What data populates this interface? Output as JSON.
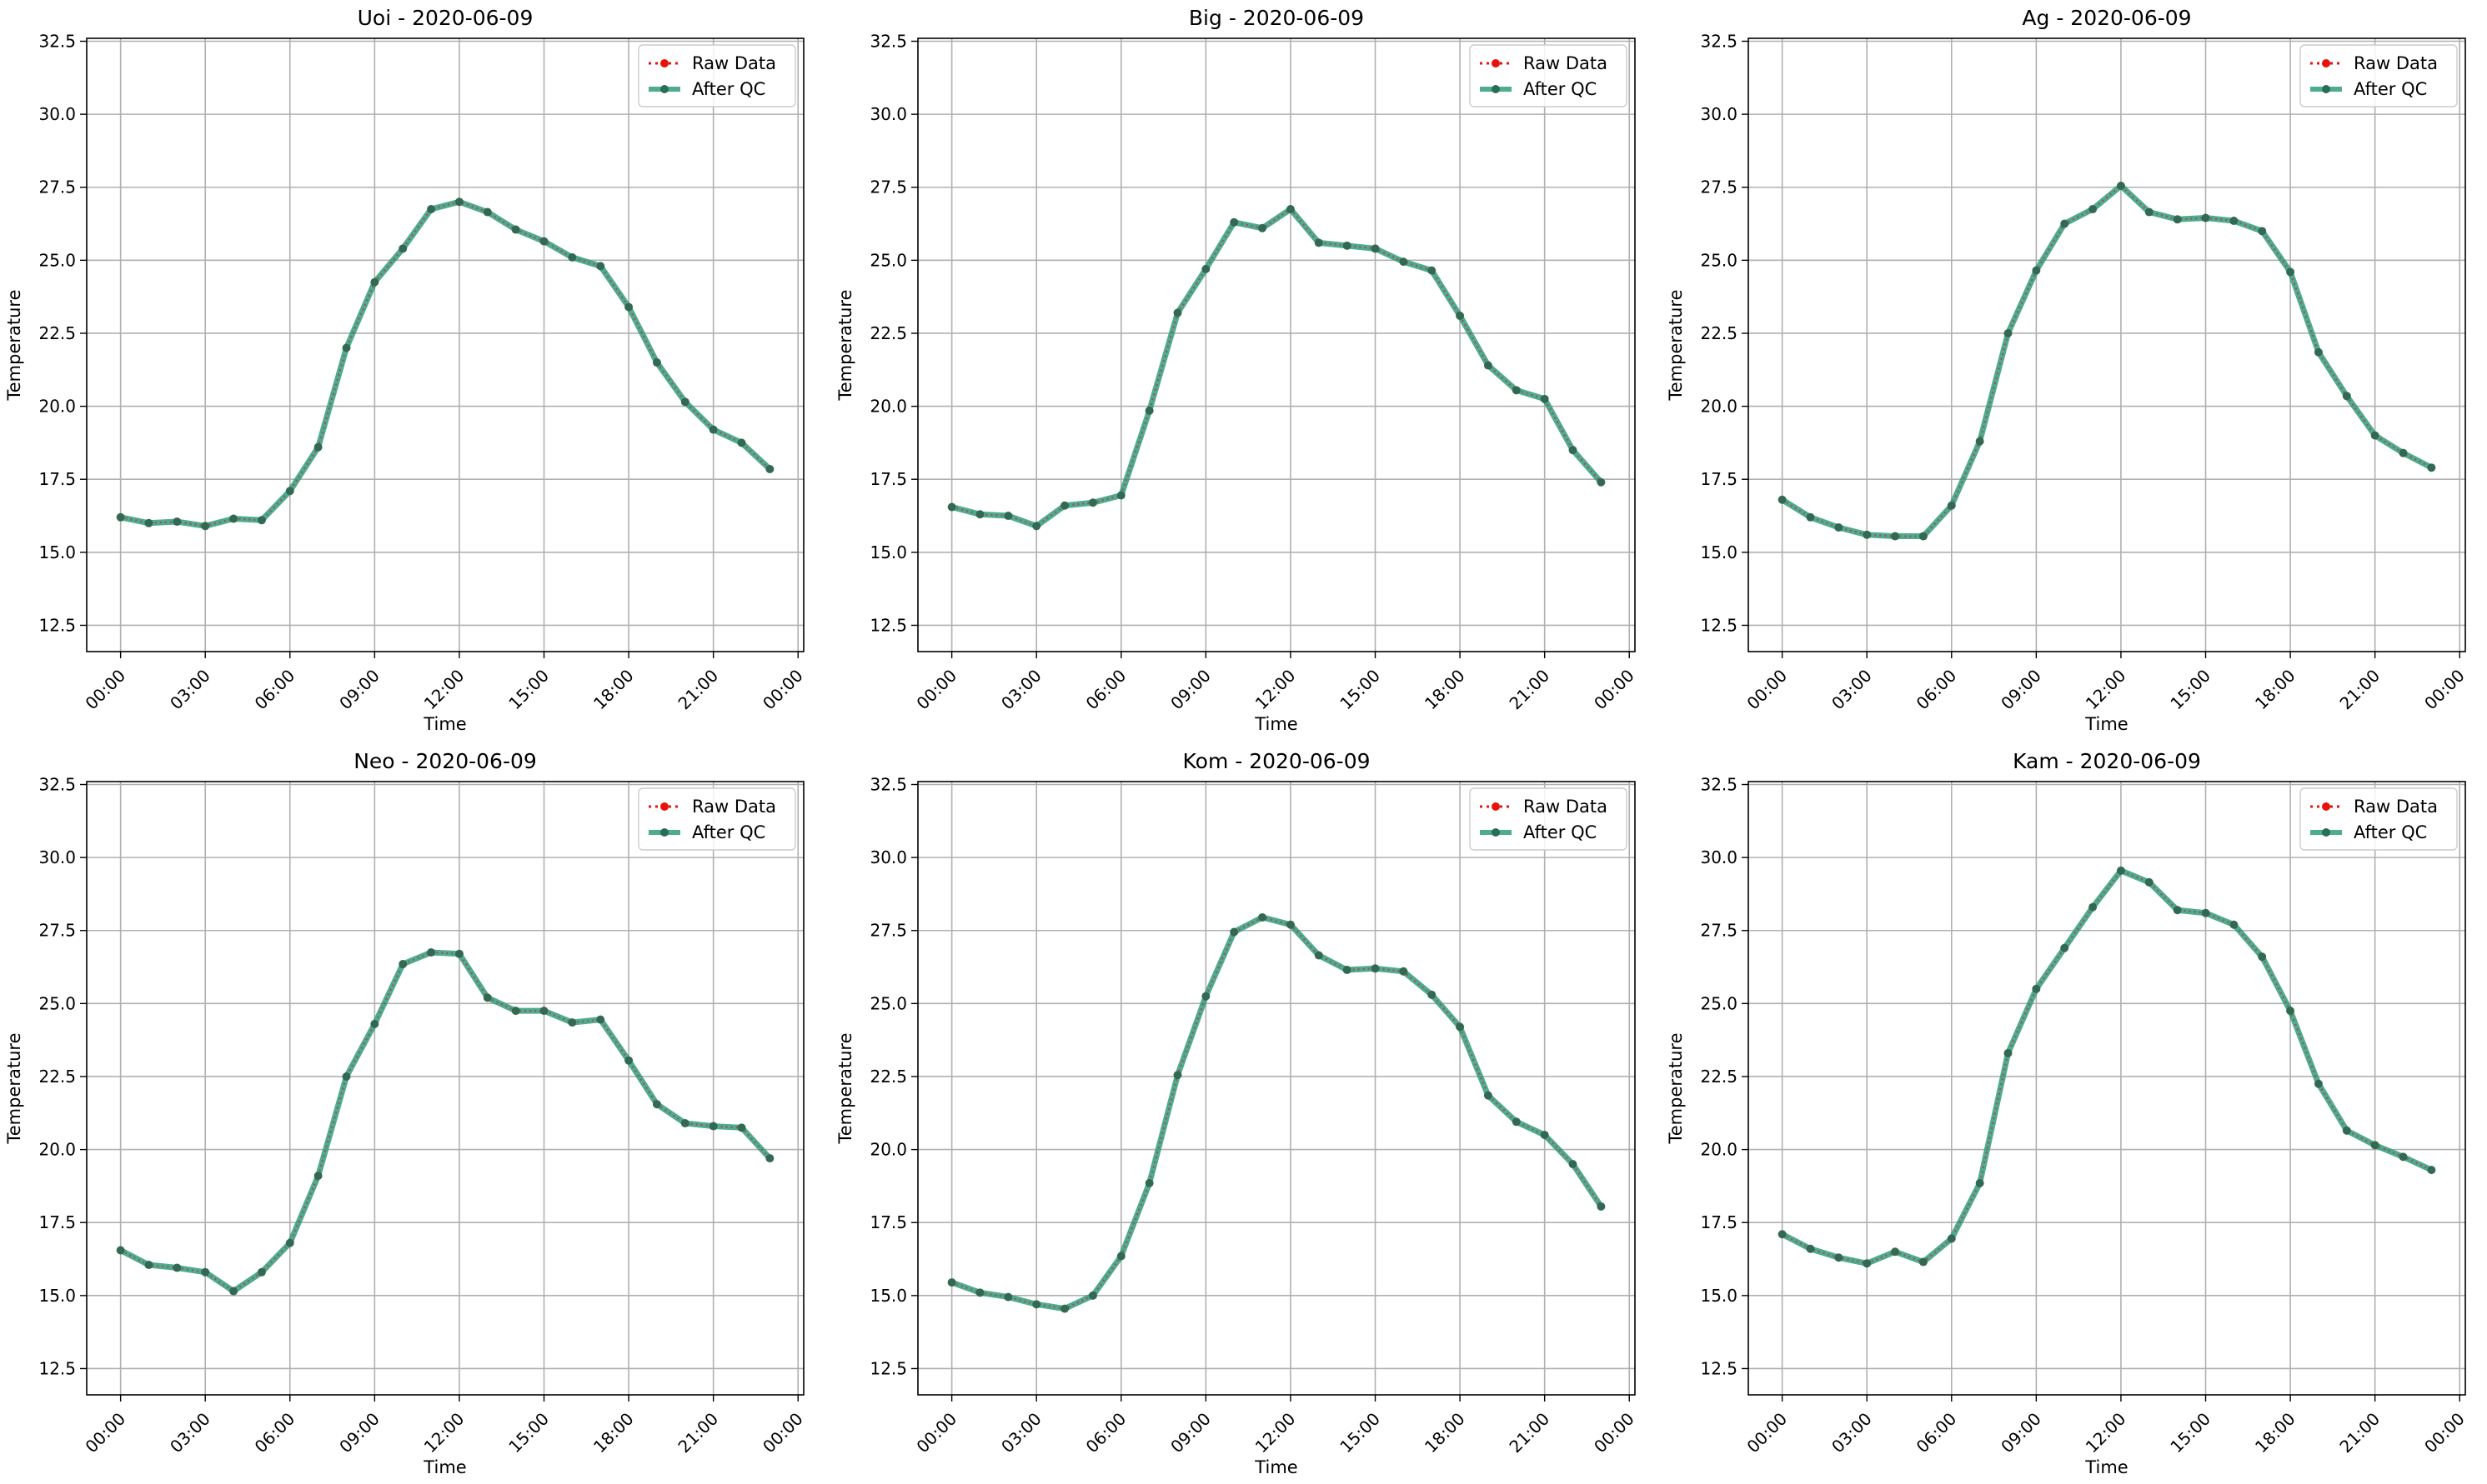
{
  "chart_data": [
    {
      "type": "line",
      "title": "Uoi - 2020-06-09",
      "xlabel": "Time",
      "ylabel": "Temperature",
      "x_ticks": [
        "00:00",
        "03:00",
        "06:00",
        "09:00",
        "12:00",
        "15:00",
        "18:00",
        "21:00",
        "00:00"
      ],
      "y_ticks": [
        "12.5",
        "15.0",
        "17.5",
        "20.0",
        "22.5",
        "25.0",
        "27.5",
        "30.0",
        "32.5"
      ],
      "ylim": [
        11.6,
        32.6
      ],
      "grid": true,
      "legend": "top-right",
      "x_hours": [
        0,
        1,
        2,
        3,
        4,
        5,
        6,
        7,
        8,
        9,
        10,
        11,
        12,
        13,
        14,
        15,
        16,
        17,
        18,
        19,
        20,
        21,
        22,
        23
      ],
      "series": [
        {
          "name": "Raw Data",
          "color": "#e8120c",
          "values": [
            16.2,
            16.0,
            16.05,
            15.9,
            16.15,
            16.1,
            17.1,
            18.6,
            22.0,
            24.25,
            25.4,
            26.75,
            27.0,
            26.65,
            26.05,
            25.65,
            25.1,
            24.8,
            23.4,
            21.5,
            20.15,
            19.2,
            18.75,
            17.85
          ]
        },
        {
          "name": "After QC",
          "color": "#2e9e7e",
          "values": [
            16.2,
            16.0,
            16.05,
            15.9,
            16.15,
            16.1,
            17.1,
            18.6,
            22.0,
            24.25,
            25.4,
            26.75,
            27.0,
            26.65,
            26.05,
            25.65,
            25.1,
            24.8,
            23.4,
            21.5,
            20.15,
            19.2,
            18.75,
            17.85
          ]
        }
      ]
    },
    {
      "type": "line",
      "title": "Big - 2020-06-09",
      "xlabel": "Time",
      "ylabel": "Temperature",
      "x_ticks": [
        "00:00",
        "03:00",
        "06:00",
        "09:00",
        "12:00",
        "15:00",
        "18:00",
        "21:00",
        "00:00"
      ],
      "y_ticks": [
        "12.5",
        "15.0",
        "17.5",
        "20.0",
        "22.5",
        "25.0",
        "27.5",
        "30.0",
        "32.5"
      ],
      "ylim": [
        11.6,
        32.6
      ],
      "grid": true,
      "legend": "top-right",
      "x_hours": [
        0,
        1,
        2,
        3,
        4,
        5,
        6,
        7,
        8,
        9,
        10,
        11,
        12,
        13,
        14,
        15,
        16,
        17,
        18,
        19,
        20,
        21,
        22,
        23
      ],
      "series": [
        {
          "name": "Raw Data",
          "color": "#e8120c",
          "values": [
            16.55,
            16.3,
            16.25,
            15.9,
            16.6,
            16.7,
            16.95,
            19.85,
            23.2,
            24.7,
            26.3,
            26.1,
            26.75,
            25.6,
            25.5,
            25.4,
            24.95,
            24.65,
            23.1,
            21.4,
            20.55,
            20.25,
            18.5,
            17.4
          ]
        },
        {
          "name": "After QC",
          "color": "#2e9e7e",
          "values": [
            16.55,
            16.3,
            16.25,
            15.9,
            16.6,
            16.7,
            16.95,
            19.85,
            23.2,
            24.7,
            26.3,
            26.1,
            26.75,
            25.6,
            25.5,
            25.4,
            24.95,
            24.65,
            23.1,
            21.4,
            20.55,
            20.25,
            18.5,
            17.4
          ]
        }
      ]
    },
    {
      "type": "line",
      "title": "Ag - 2020-06-09",
      "xlabel": "Time",
      "ylabel": "Temperature",
      "x_ticks": [
        "00:00",
        "03:00",
        "06:00",
        "09:00",
        "12:00",
        "15:00",
        "18:00",
        "21:00",
        "00:00"
      ],
      "y_ticks": [
        "12.5",
        "15.0",
        "17.5",
        "20.0",
        "22.5",
        "25.0",
        "27.5",
        "30.0",
        "32.5"
      ],
      "ylim": [
        11.6,
        32.6
      ],
      "grid": true,
      "legend": "top-right",
      "x_hours": [
        0,
        1,
        2,
        3,
        4,
        5,
        6,
        7,
        8,
        9,
        10,
        11,
        12,
        13,
        14,
        15,
        16,
        17,
        18,
        19,
        20,
        21,
        22,
        23
      ],
      "series": [
        {
          "name": "Raw Data",
          "color": "#e8120c",
          "values": [
            16.8,
            16.2,
            15.85,
            15.6,
            15.55,
            15.55,
            16.6,
            18.8,
            22.5,
            24.65,
            26.25,
            26.75,
            27.55,
            26.65,
            26.4,
            26.45,
            26.35,
            26.0,
            24.6,
            21.85,
            20.35,
            19.0,
            18.4,
            17.9
          ]
        },
        {
          "name": "After QC",
          "color": "#2e9e7e",
          "values": [
            16.8,
            16.2,
            15.85,
            15.6,
            15.55,
            15.55,
            16.6,
            18.8,
            22.5,
            24.65,
            26.25,
            26.75,
            27.55,
            26.65,
            26.4,
            26.45,
            26.35,
            26.0,
            24.6,
            21.85,
            20.35,
            19.0,
            18.4,
            17.9
          ]
        }
      ]
    },
    {
      "type": "line",
      "title": "Neo - 2020-06-09",
      "xlabel": "Time",
      "ylabel": "Temperature",
      "x_ticks": [
        "00:00",
        "03:00",
        "06:00",
        "09:00",
        "12:00",
        "15:00",
        "18:00",
        "21:00",
        "00:00"
      ],
      "y_ticks": [
        "12.5",
        "15.0",
        "17.5",
        "20.0",
        "22.5",
        "25.0",
        "27.5",
        "30.0",
        "32.5"
      ],
      "ylim": [
        11.6,
        32.6
      ],
      "grid": true,
      "legend": "top-right",
      "x_hours": [
        0,
        1,
        2,
        3,
        4,
        5,
        6,
        7,
        8,
        9,
        10,
        11,
        12,
        13,
        14,
        15,
        16,
        17,
        18,
        19,
        20,
        21,
        22,
        23
      ],
      "series": [
        {
          "name": "Raw Data",
          "color": "#e8120c",
          "values": [
            16.55,
            16.05,
            15.95,
            15.8,
            15.15,
            15.8,
            16.8,
            19.1,
            22.5,
            24.3,
            26.35,
            26.75,
            26.7,
            25.2,
            24.75,
            24.75,
            24.35,
            24.45,
            23.05,
            21.55,
            20.9,
            20.8,
            20.75,
            19.7
          ]
        },
        {
          "name": "After QC",
          "color": "#2e9e7e",
          "values": [
            16.55,
            16.05,
            15.95,
            15.8,
            15.15,
            15.8,
            16.8,
            19.1,
            22.5,
            24.3,
            26.35,
            26.75,
            26.7,
            25.2,
            24.75,
            24.75,
            24.35,
            24.45,
            23.05,
            21.55,
            20.9,
            20.8,
            20.75,
            19.7
          ]
        }
      ]
    },
    {
      "type": "line",
      "title": "Kom - 2020-06-09",
      "xlabel": "Time",
      "ylabel": "Temperature",
      "x_ticks": [
        "00:00",
        "03:00",
        "06:00",
        "09:00",
        "12:00",
        "15:00",
        "18:00",
        "21:00",
        "00:00"
      ],
      "y_ticks": [
        "12.5",
        "15.0",
        "17.5",
        "20.0",
        "22.5",
        "25.0",
        "27.5",
        "30.0",
        "32.5"
      ],
      "ylim": [
        11.6,
        32.6
      ],
      "grid": true,
      "legend": "top-right",
      "x_hours": [
        0,
        1,
        2,
        3,
        4,
        5,
        6,
        7,
        8,
        9,
        10,
        11,
        12,
        13,
        14,
        15,
        16,
        17,
        18,
        19,
        20,
        21,
        22,
        23
      ],
      "series": [
        {
          "name": "Raw Data",
          "color": "#e8120c",
          "values": [
            15.45,
            15.1,
            14.95,
            14.7,
            14.55,
            15.0,
            16.35,
            18.85,
            22.55,
            25.25,
            27.45,
            27.95,
            27.7,
            26.65,
            26.15,
            26.2,
            26.1,
            25.3,
            24.2,
            21.85,
            20.95,
            20.5,
            19.5,
            18.05
          ]
        },
        {
          "name": "After QC",
          "color": "#2e9e7e",
          "values": [
            15.45,
            15.1,
            14.95,
            14.7,
            14.55,
            15.0,
            16.35,
            18.85,
            22.55,
            25.25,
            27.45,
            27.95,
            27.7,
            26.65,
            26.15,
            26.2,
            26.1,
            25.3,
            24.2,
            21.85,
            20.95,
            20.5,
            19.5,
            18.05
          ]
        }
      ]
    },
    {
      "type": "line",
      "title": "Kam - 2020-06-09",
      "xlabel": "Time",
      "ylabel": "Temperature",
      "x_ticks": [
        "00:00",
        "03:00",
        "06:00",
        "09:00",
        "12:00",
        "15:00",
        "18:00",
        "21:00",
        "00:00"
      ],
      "y_ticks": [
        "12.5",
        "15.0",
        "17.5",
        "20.0",
        "22.5",
        "25.0",
        "27.5",
        "30.0",
        "32.5"
      ],
      "ylim": [
        11.6,
        32.6
      ],
      "grid": true,
      "legend": "top-right",
      "x_hours": [
        0,
        1,
        2,
        3,
        4,
        5,
        6,
        7,
        8,
        9,
        10,
        11,
        12,
        13,
        14,
        15,
        16,
        17,
        18,
        19,
        20,
        21,
        22,
        23
      ],
      "series": [
        {
          "name": "Raw Data",
          "color": "#e8120c",
          "values": [
            17.1,
            16.6,
            16.3,
            16.1,
            16.5,
            16.15,
            16.95,
            18.85,
            23.3,
            25.5,
            26.9,
            28.3,
            29.55,
            29.15,
            28.2,
            28.1,
            27.7,
            26.6,
            24.75,
            22.25,
            20.65,
            20.15,
            19.75,
            19.3
          ]
        },
        {
          "name": "After QC",
          "color": "#2e9e7e",
          "values": [
            17.1,
            16.6,
            16.3,
            16.1,
            16.5,
            16.15,
            16.95,
            18.85,
            23.3,
            25.5,
            26.9,
            28.3,
            29.55,
            29.15,
            28.2,
            28.1,
            27.7,
            26.6,
            24.75,
            22.25,
            20.65,
            20.15,
            19.75,
            19.3
          ]
        }
      ]
    }
  ]
}
